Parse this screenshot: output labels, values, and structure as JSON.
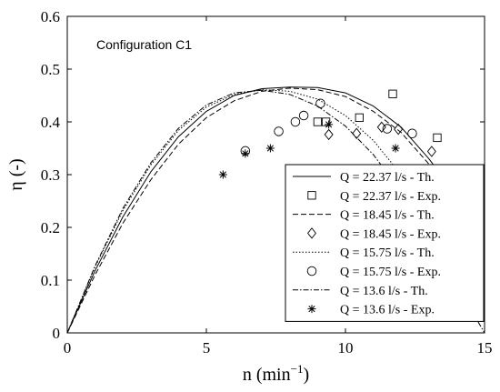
{
  "chart_data": {
    "type": "line",
    "title": "",
    "annotation": "Configuration C1",
    "xlabel": "n (min",
    "xlabel_sup": "−1",
    "xlabel_close": ")",
    "ylabel": "η (-)",
    "xlim": [
      0,
      15
    ],
    "ylim": [
      0,
      0.6
    ],
    "x_ticks": [
      0,
      5,
      10,
      15
    ],
    "y_ticks": [
      0,
      0.1,
      0.2,
      0.3,
      0.4,
      0.5,
      0.6
    ],
    "x_tick_labels": [
      "0",
      "5",
      "10",
      "15"
    ],
    "y_tick_labels": [
      "0",
      "0.1",
      "0.2",
      "0.3",
      "0.4",
      "0.5",
      "0.6"
    ],
    "grid": false,
    "legend_position": "bottom-right",
    "series": [
      {
        "name": "Q = 22.37 l/s - Th.",
        "kind": "line",
        "style": "solid",
        "x": [
          0,
          1,
          2,
          3,
          4,
          5,
          6,
          7,
          8,
          9,
          10,
          11,
          12,
          13,
          14,
          15
        ],
        "y": [
          0,
          0.118,
          0.22,
          0.305,
          0.372,
          0.42,
          0.45,
          0.463,
          0.466,
          0.465,
          0.455,
          0.43,
          0.39,
          0.33,
          0.26,
          0.19
        ]
      },
      {
        "name": "Q = 22.37 l/s - Exp.",
        "kind": "marker",
        "marker": "square",
        "x": [
          9.0,
          9.3,
          10.5,
          11.7,
          13.3
        ],
        "y": [
          0.4,
          0.4,
          0.408,
          0.453,
          0.37
        ]
      },
      {
        "name": "Q = 18.45 l/s - Th.",
        "kind": "line",
        "style": "dashed",
        "x": [
          0,
          1,
          2,
          3,
          4,
          5,
          6,
          7,
          8,
          9,
          10,
          11,
          12,
          13,
          14,
          15
        ],
        "y": [
          0,
          0.11,
          0.208,
          0.29,
          0.358,
          0.408,
          0.44,
          0.458,
          0.464,
          0.461,
          0.448,
          0.42,
          0.38,
          0.32,
          0.245,
          0.16
        ]
      },
      {
        "name": "Q = 18.45 l/s - Exp.",
        "kind": "marker",
        "marker": "diamond",
        "x": [
          9.4,
          10.4,
          11.3,
          11.9,
          13.1
        ],
        "y": [
          0.376,
          0.378,
          0.39,
          0.386,
          0.344
        ]
      },
      {
        "name": "Q = 15.75 l/s - Th.",
        "kind": "line",
        "style": "dotted",
        "x": [
          0,
          1,
          2,
          3,
          4,
          5,
          6,
          7,
          8,
          9,
          10,
          11,
          12,
          13,
          14,
          15
        ],
        "y": [
          0,
          0.125,
          0.232,
          0.318,
          0.384,
          0.428,
          0.452,
          0.461,
          0.458,
          0.443,
          0.412,
          0.365,
          0.3,
          0.225,
          0.14,
          0.05
        ]
      },
      {
        "name": "Q = 15.75 l/s - Exp.",
        "kind": "marker",
        "marker": "circle",
        "x": [
          6.4,
          7.6,
          8.2,
          8.5,
          9.1,
          11.5,
          12.4
        ],
        "y": [
          0.345,
          0.382,
          0.4,
          0.412,
          0.435,
          0.387,
          0.378
        ]
      },
      {
        "name": "Q = 13.6 l/s - Th.",
        "kind": "line",
        "style": "dashdot",
        "x": [
          0,
          1,
          2,
          3,
          4,
          5,
          6,
          7,
          8,
          9,
          10,
          11,
          12,
          13,
          14,
          15
        ],
        "y": [
          0,
          0.127,
          0.236,
          0.322,
          0.388,
          0.432,
          0.455,
          0.46,
          0.452,
          0.43,
          0.392,
          0.338,
          0.268,
          0.184,
          0.09,
          0.0
        ]
      },
      {
        "name": "Q = 13.6 l/s - Exp.",
        "kind": "marker",
        "marker": "asterisk",
        "x": [
          5.6,
          6.4,
          7.3,
          9.4,
          11.8
        ],
        "y": [
          0.3,
          0.34,
          0.35,
          0.395,
          0.35
        ]
      }
    ]
  }
}
